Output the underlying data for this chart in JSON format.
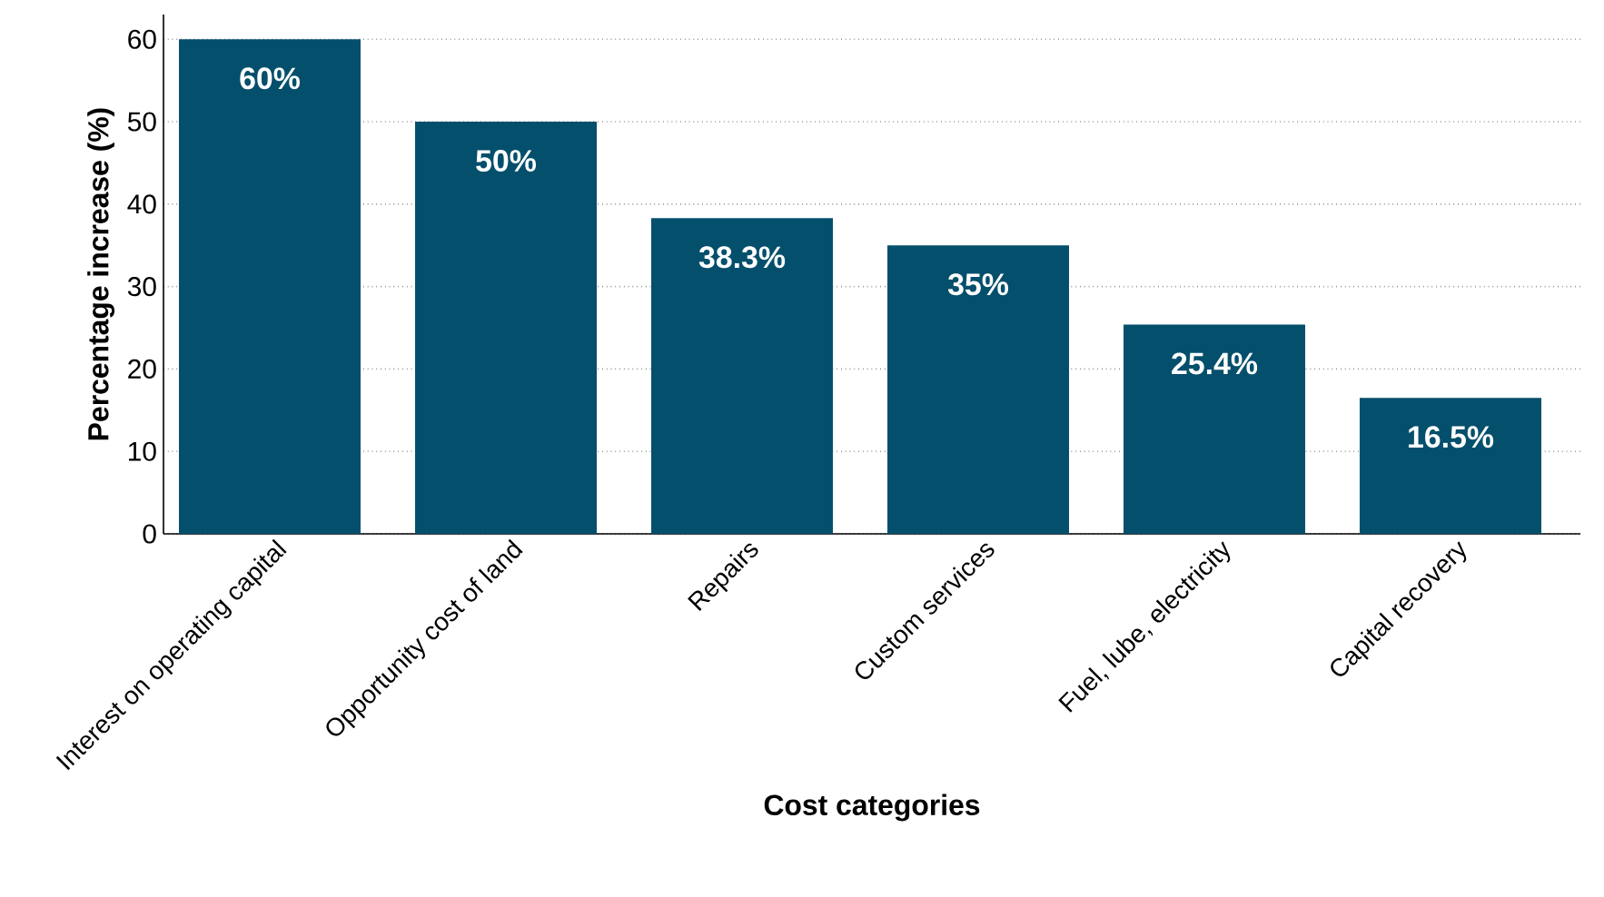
{
  "chart_data": {
    "type": "bar",
    "xlabel": "Cost categories",
    "ylabel": "Percentage increase (%)",
    "categories": [
      "Interest on operating capital",
      "Opportunity cost of land",
      "Repairs",
      "Custom services",
      "Fuel, lube, electricity",
      "Capital recovery"
    ],
    "values": [
      60,
      50,
      38.3,
      35,
      25.4,
      16.5
    ],
    "value_labels": [
      "60%",
      "50%",
      "38.3%",
      "35%",
      "25.4%",
      "16.5%"
    ],
    "color": "#044f6c",
    "ylim": [
      0,
      63
    ],
    "yticks": [
      0,
      10,
      20,
      30,
      40,
      50,
      60
    ],
    "grid": "y"
  }
}
